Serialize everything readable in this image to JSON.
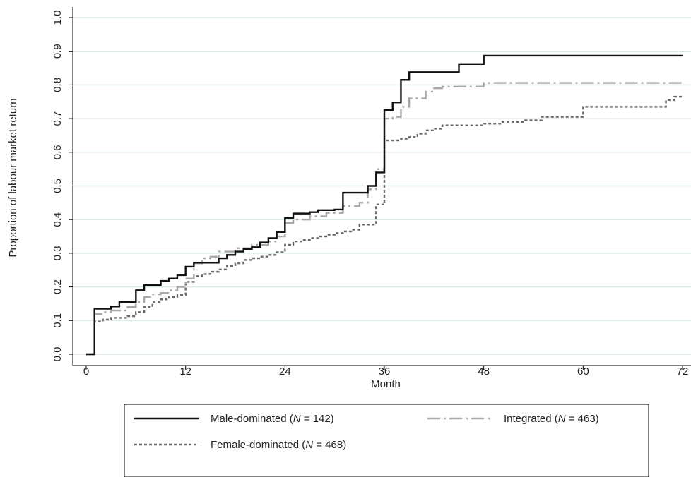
{
  "chart_data": {
    "type": "line",
    "step": true,
    "xlabel": "Month",
    "ylabel": "Proportion of labour market return",
    "xlim": [
      0,
      72
    ],
    "ylim": [
      0,
      1
    ],
    "xticks": [
      0,
      12,
      24,
      36,
      48,
      60,
      72
    ],
    "yticks": [
      0.0,
      0.1,
      0.2,
      0.3,
      0.4,
      0.5,
      0.6,
      0.7,
      0.8,
      0.9,
      1.0
    ],
    "ytick_labels": [
      "0.0",
      "0.1",
      "0.2",
      "0.3",
      "0.4",
      "0.5",
      "0.6",
      "0.7",
      "0.8",
      "0.9",
      "1.0"
    ],
    "grid": "horizontal",
    "legend_position": "bottom",
    "series": [
      {
        "name_prefix": "Male-dominated (",
        "name_italic": "N",
        "name_suffix": " = 142)",
        "color": "#111111",
        "dash": "",
        "width": 2.4,
        "x": [
          0,
          1,
          3,
          4,
          6,
          7,
          9,
          10,
          11,
          12,
          13,
          16,
          17,
          18,
          19,
          20,
          21,
          22,
          23,
          24,
          25,
          27,
          28,
          30,
          31,
          33,
          34,
          35,
          36,
          37,
          38,
          39,
          45,
          48,
          72
        ],
        "y": [
          0,
          0.135,
          0.142,
          0.155,
          0.19,
          0.205,
          0.218,
          0.225,
          0.235,
          0.26,
          0.272,
          0.285,
          0.295,
          0.305,
          0.312,
          0.318,
          0.332,
          0.345,
          0.363,
          0.405,
          0.418,
          0.422,
          0.428,
          0.43,
          0.48,
          0.48,
          0.5,
          0.54,
          0.725,
          0.748,
          0.815,
          0.838,
          0.862,
          0.887,
          0.887
        ]
      },
      {
        "name_prefix": "Integrated (",
        "name_italic": "N",
        "name_suffix": " = 463)",
        "color": "#a8a8a8",
        "dash": "18 5 3 5",
        "width": 2.4,
        "x": [
          0,
          1,
          2,
          3,
          5,
          6,
          7,
          8,
          9,
          10,
          11,
          12,
          13,
          14,
          15,
          16,
          18,
          20,
          22,
          23,
          24,
          25,
          27,
          29,
          31,
          33,
          34,
          35,
          36,
          37,
          38,
          39,
          41,
          42,
          43,
          48,
          72
        ],
        "y": [
          0,
          0.12,
          0.125,
          0.13,
          0.14,
          0.155,
          0.17,
          0.178,
          0.182,
          0.19,
          0.2,
          0.225,
          0.27,
          0.285,
          0.29,
          0.305,
          0.315,
          0.325,
          0.335,
          0.35,
          0.39,
          0.4,
          0.41,
          0.42,
          0.44,
          0.45,
          0.49,
          0.55,
          0.7,
          0.705,
          0.735,
          0.76,
          0.78,
          0.79,
          0.795,
          0.806,
          0.806
        ]
      },
      {
        "name_prefix": "Female-dominated (",
        "name_italic": "N",
        "name_suffix": " = 468)",
        "color": "#6a6a6a",
        "dash": "4 3",
        "width": 2.4,
        "x": [
          0,
          1,
          2,
          3,
          5,
          6,
          7,
          8,
          9,
          10,
          11,
          12,
          13,
          14,
          15,
          16,
          17,
          18,
          19,
          20,
          21,
          22,
          23,
          24,
          25,
          26,
          27,
          28,
          29,
          30,
          31,
          32,
          33,
          35,
          36,
          38,
          39,
          40,
          41,
          42,
          43,
          47,
          48,
          50,
          53,
          55,
          60,
          70,
          71,
          72
        ],
        "y": [
          0,
          0.097,
          0.103,
          0.108,
          0.113,
          0.125,
          0.14,
          0.155,
          0.163,
          0.17,
          0.176,
          0.215,
          0.232,
          0.238,
          0.245,
          0.252,
          0.262,
          0.27,
          0.28,
          0.285,
          0.29,
          0.295,
          0.303,
          0.325,
          0.335,
          0.34,
          0.345,
          0.35,
          0.355,
          0.36,
          0.365,
          0.37,
          0.385,
          0.445,
          0.635,
          0.64,
          0.645,
          0.655,
          0.665,
          0.67,
          0.68,
          0.68,
          0.685,
          0.69,
          0.695,
          0.705,
          0.735,
          0.755,
          0.765,
          0.765
        ]
      }
    ]
  }
}
